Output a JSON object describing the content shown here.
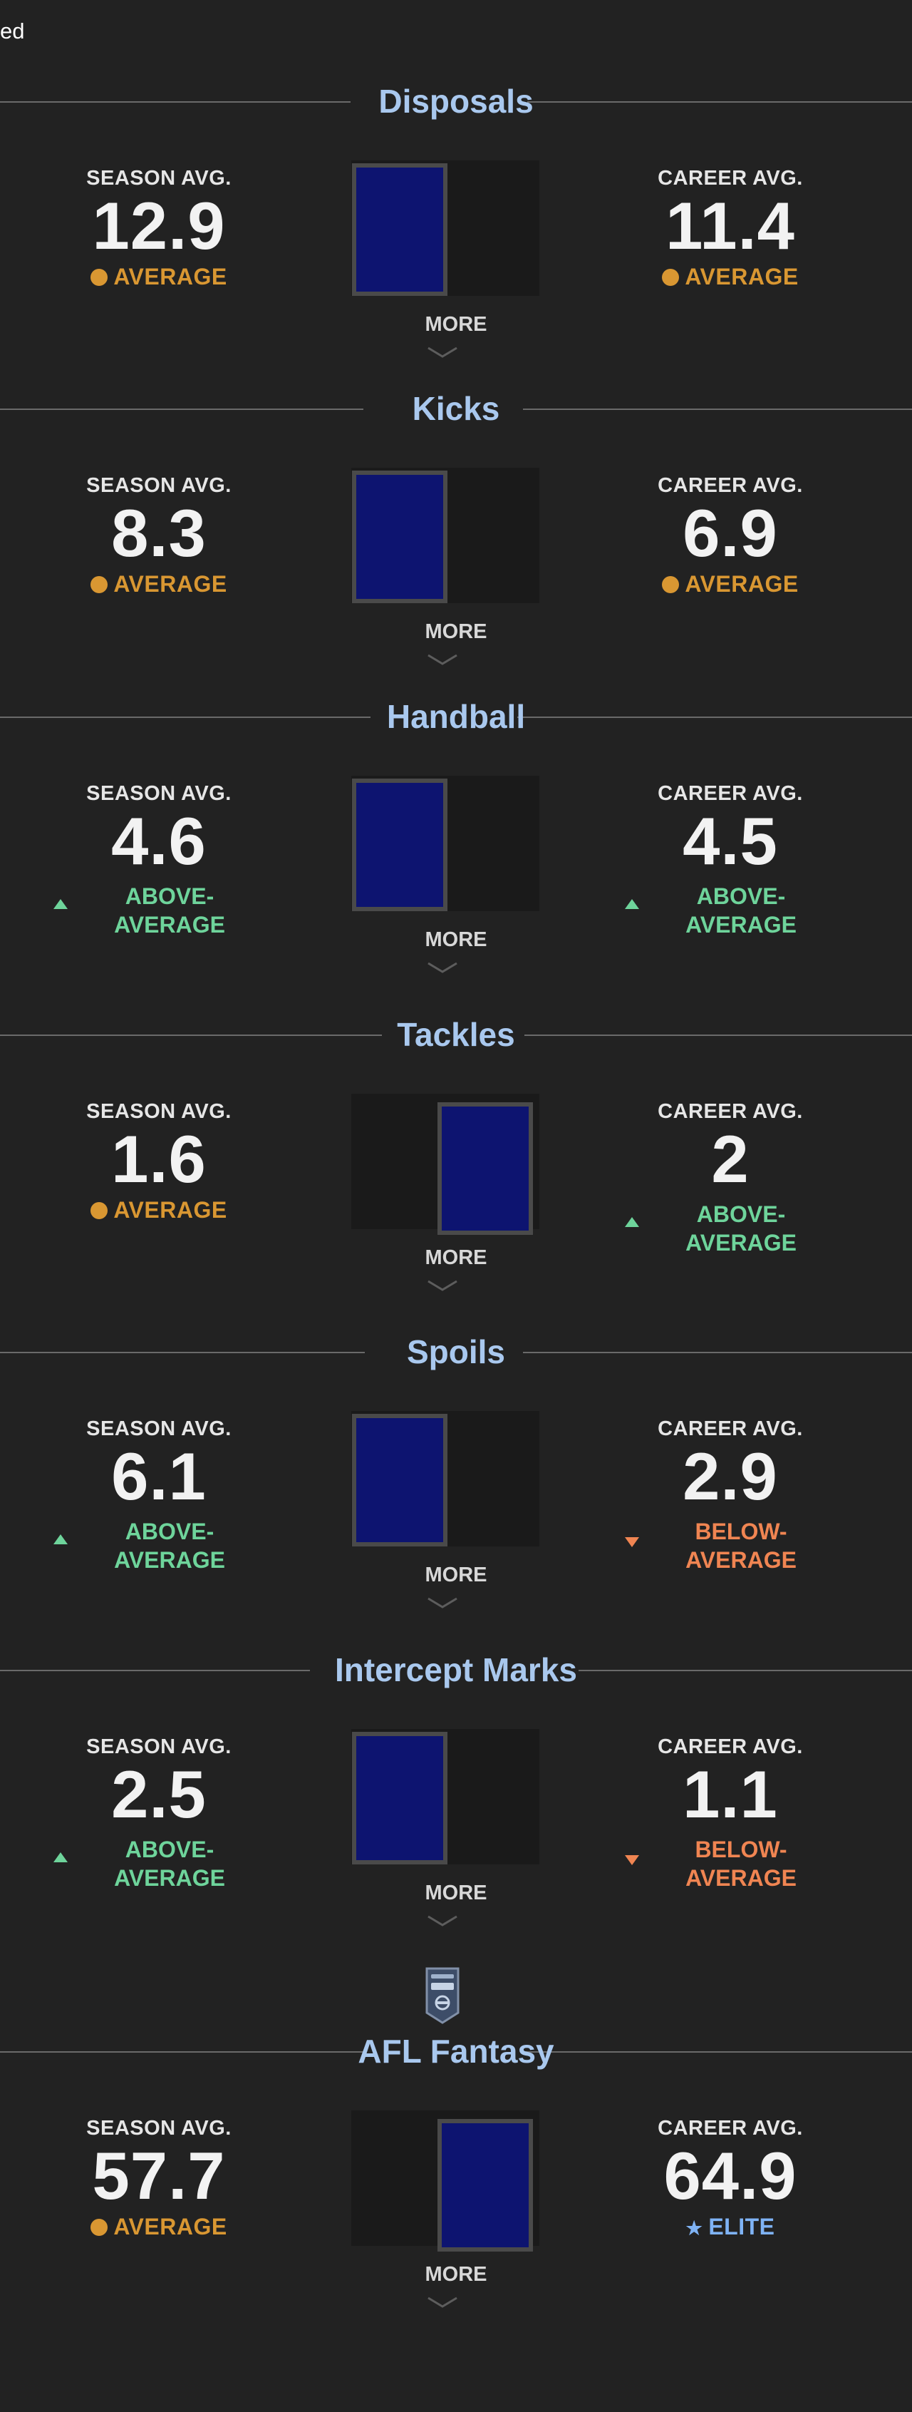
{
  "page": {
    "top_text": "ed"
  },
  "labels": {
    "season": "SEASON AVG.",
    "career": "CAREER AVG.",
    "more": "MORE"
  },
  "colors": {
    "average": "#d99732",
    "above_average": "#6ed49b",
    "below_average": "#f08552",
    "elite": "#7fb3f5",
    "title": "#a9c8ee",
    "card": "#0d1470"
  },
  "sections": [
    {
      "title": "Disposals",
      "season": {
        "value": "12.9",
        "rating": "AVERAGE",
        "rating_line1": "",
        "rating_line2": "",
        "type": "average"
      },
      "career": {
        "value": "11.4",
        "rating": "AVERAGE",
        "rating_line1": "",
        "rating_line2": "",
        "type": "average"
      },
      "card_position": "left"
    },
    {
      "title": "Kicks",
      "season": {
        "value": "8.3",
        "rating": "AVERAGE",
        "rating_line1": "",
        "rating_line2": "",
        "type": "average"
      },
      "career": {
        "value": "6.9",
        "rating": "AVERAGE",
        "rating_line1": "",
        "rating_line2": "",
        "type": "average"
      },
      "card_position": "left"
    },
    {
      "title": "Handball",
      "season": {
        "value": "4.6",
        "rating": "",
        "rating_line1": "ABOVE-",
        "rating_line2": "AVERAGE",
        "type": "above"
      },
      "career": {
        "value": "4.5",
        "rating": "",
        "rating_line1": "ABOVE-",
        "rating_line2": "AVERAGE",
        "type": "above"
      },
      "card_position": "left"
    },
    {
      "title": "Tackles",
      "season": {
        "value": "1.6",
        "rating": "AVERAGE",
        "rating_line1": "",
        "rating_line2": "",
        "type": "average"
      },
      "career": {
        "value": "2",
        "rating": "",
        "rating_line1": "ABOVE-",
        "rating_line2": "AVERAGE",
        "type": "above"
      },
      "card_position": "right"
    },
    {
      "title": "Spoils",
      "season": {
        "value": "6.1",
        "rating": "",
        "rating_line1": "ABOVE-",
        "rating_line2": "AVERAGE",
        "type": "above"
      },
      "career": {
        "value": "2.9",
        "rating": "",
        "rating_line1": "BELOW-",
        "rating_line2": "AVERAGE",
        "type": "below"
      },
      "card_position": "left"
    },
    {
      "title": "Intercept Marks",
      "season": {
        "value": "2.5",
        "rating": "",
        "rating_line1": "ABOVE-",
        "rating_line2": "AVERAGE",
        "type": "above"
      },
      "career": {
        "value": "1.1",
        "rating": "",
        "rating_line1": "BELOW-",
        "rating_line2": "AVERAGE",
        "type": "below"
      },
      "card_position": "left"
    },
    {
      "title": "AFL Fantasy",
      "season": {
        "value": "57.7",
        "rating": "AVERAGE",
        "rating_line1": "",
        "rating_line2": "",
        "type": "average"
      },
      "career": {
        "value": "64.9",
        "rating": "ELITE",
        "rating_line1": "",
        "rating_line2": "",
        "type": "elite"
      },
      "card_position": "right"
    }
  ]
}
